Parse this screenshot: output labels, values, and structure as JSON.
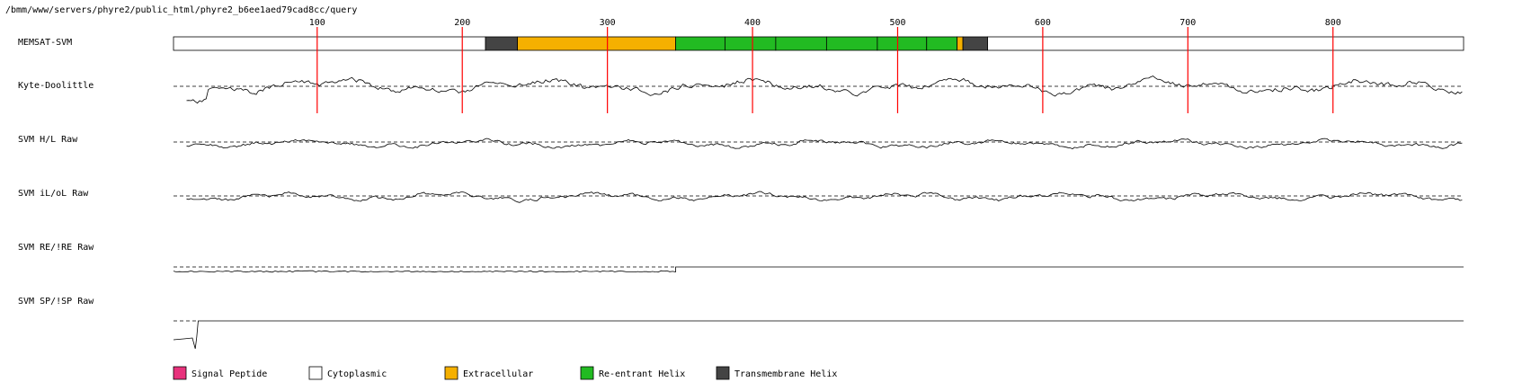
{
  "path": "/bmm/www/servers/phyre2/public_html/phyre2_b6ee1aed79cad8cc/query",
  "tracks": [
    {
      "key": "memsat",
      "label": "MEMSAT-SVM"
    },
    {
      "key": "kd",
      "label": "Kyte-Doolittle"
    },
    {
      "key": "hl",
      "label": "SVM H/L Raw"
    },
    {
      "key": "il",
      "label": "SVM iL/oL Raw"
    },
    {
      "key": "re",
      "label": "SVM RE/!RE Raw"
    },
    {
      "key": "sp",
      "label": "SVM SP/!SP Raw"
    }
  ],
  "chart_data": {
    "type": "diagram",
    "sequence_length": 890,
    "ticks": [
      100,
      200,
      300,
      400,
      500,
      600,
      700,
      800
    ],
    "marker_color": "#ff0000",
    "memsat_segments": [
      {
        "start": 1,
        "end": 216,
        "type": "cytoplasmic"
      },
      {
        "start": 216,
        "end": 238,
        "type": "transmembrane"
      },
      {
        "start": 238,
        "end": 347,
        "type": "extracellular"
      },
      {
        "start": 347,
        "end": 381,
        "type": "reentrant"
      },
      {
        "start": 381,
        "end": 416,
        "type": "reentrant"
      },
      {
        "start": 416,
        "end": 451,
        "type": "reentrant"
      },
      {
        "start": 451,
        "end": 486,
        "type": "reentrant"
      },
      {
        "start": 486,
        "end": 520,
        "type": "reentrant"
      },
      {
        "start": 520,
        "end": 541,
        "type": "reentrant"
      },
      {
        "start": 541,
        "end": 545,
        "type": "extracellular"
      },
      {
        "start": 545,
        "end": 562,
        "type": "transmembrane"
      },
      {
        "start": 562,
        "end": 890,
        "type": "cytoplasmic"
      }
    ],
    "legend": [
      {
        "key": "signal",
        "label": "Signal Peptide",
        "color": "#e8327c"
      },
      {
        "key": "cytoplasmic",
        "label": "Cytoplasmic",
        "color": "#ffffff"
      },
      {
        "key": "extracellular",
        "label": "Extracellular",
        "color": "#f5b000"
      },
      {
        "key": "reentrant",
        "label": "Re-entrant Helix",
        "color": "#22bb22"
      },
      {
        "key": "transmembrane",
        "label": "Transmembrane Helix",
        "color": "#444444"
      }
    ],
    "re_step_residue": 347,
    "sp_step_residue": 18
  }
}
